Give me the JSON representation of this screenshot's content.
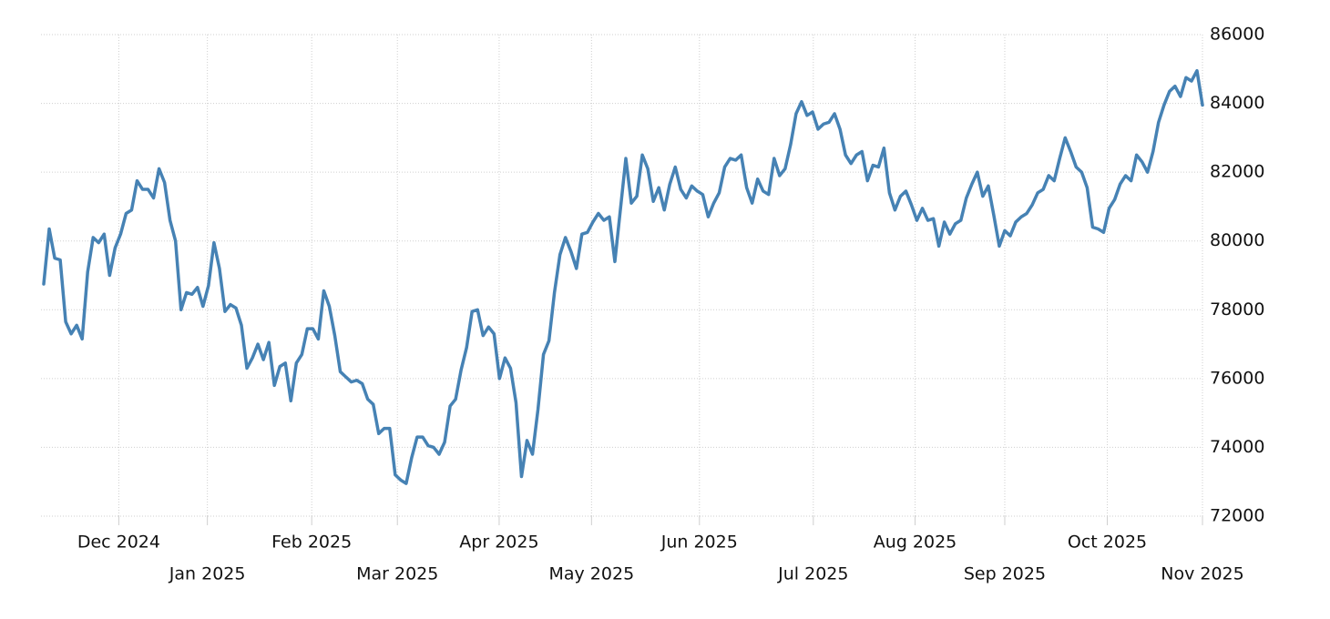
{
  "chart_data": {
    "type": "line",
    "color": "#4682b4",
    "grid": true,
    "values": [
      78750,
      80350,
      79500,
      79450,
      77650,
      77300,
      77550,
      77150,
      79100,
      80100,
      79950,
      80200,
      79000,
      79800,
      80200,
      80800,
      80900,
      81750,
      81500,
      81500,
      81250,
      82100,
      81700,
      80600,
      80000,
      78000,
      78500,
      78450,
      78650,
      78100,
      78700,
      79950,
      79200,
      77950,
      78150,
      78050,
      77550,
      76300,
      76600,
      77000,
      76550,
      77050,
      75800,
      76350,
      76450,
      75350,
      76450,
      76700,
      77450,
      77450,
      77150,
      78550,
      78100,
      77250,
      76200,
      76050,
      75900,
      75950,
      75850,
      75400,
      75250,
      74400,
      74550,
      74550,
      73200,
      73050,
      72950,
      73700,
      74300,
      74300,
      74050,
      74000,
      73800,
      74150,
      75200,
      75400,
      76250,
      76900,
      77950,
      78000,
      77250,
      77500,
      77300,
      76000,
      76600,
      76300,
      75300,
      73150,
      74200,
      73800,
      75100,
      76700,
      77100,
      78500,
      79600,
      80100,
      79700,
      79200,
      80200,
      80250,
      80550,
      80800,
      80600,
      80700,
      79400,
      80900,
      82400,
      81100,
      81300,
      82500,
      82100,
      81150,
      81550,
      80900,
      81650,
      82150,
      81500,
      81250,
      81600,
      81450,
      81350,
      80700,
      81100,
      81400,
      82150,
      82400,
      82350,
      82500,
      81550,
      81100,
      81800,
      81450,
      81350,
      82400,
      81900,
      82100,
      82800,
      83700,
      84050,
      83650,
      83750,
      83250,
      83400,
      83450,
      83700,
      83250,
      82500,
      82250,
      82500,
      82600,
      81750,
      82200,
      82150,
      82700,
      81400,
      80900,
      81300,
      81450,
      81050,
      80600,
      80950,
      80600,
      80650,
      79850,
      80550,
      80200,
      80500,
      80600,
      81250,
      81650,
      82000,
      81300,
      81600,
      80750,
      79850,
      80300,
      80150,
      80550,
      80700,
      80800,
      81050,
      81400,
      81500,
      81900,
      81750,
      82400,
      83000,
      82600,
      82150,
      82000,
      81550,
      80400,
      80350,
      80250,
      80950,
      81200,
      81650,
      81900,
      81750,
      82500,
      82300,
      82000,
      82600,
      83450,
      83950,
      84350,
      84500,
      84200,
      84750,
      84650,
      84950,
      83950
    ],
    "xlim": [
      0,
      211
    ],
    "xticks": [
      {
        "value": 13.67,
        "label": "Dec 2024"
      },
      {
        "value": 29.8,
        "label": "Jan 2025"
      },
      {
        "value": 48.8,
        "label": "Feb 2025"
      },
      {
        "value": 64.4,
        "label": "Mar 2025"
      },
      {
        "value": 82.93,
        "label": "Apr 2025"
      },
      {
        "value": 99.75,
        "label": "May 2025"
      },
      {
        "value": 119.4,
        "label": "Jun 2025"
      },
      {
        "value": 140.14,
        "label": "Jul 2025"
      },
      {
        "value": 158.67,
        "label": "Aug 2025"
      },
      {
        "value": 175,
        "label": "Sep 2025"
      },
      {
        "value": 193.67,
        "label": "Oct 2025"
      },
      {
        "value": 211,
        "label": "Nov 2025"
      }
    ],
    "ylim": [
      72000,
      86000
    ],
    "yticks": [
      72000,
      74000,
      76000,
      78000,
      80000,
      82000,
      84000,
      86000
    ]
  }
}
